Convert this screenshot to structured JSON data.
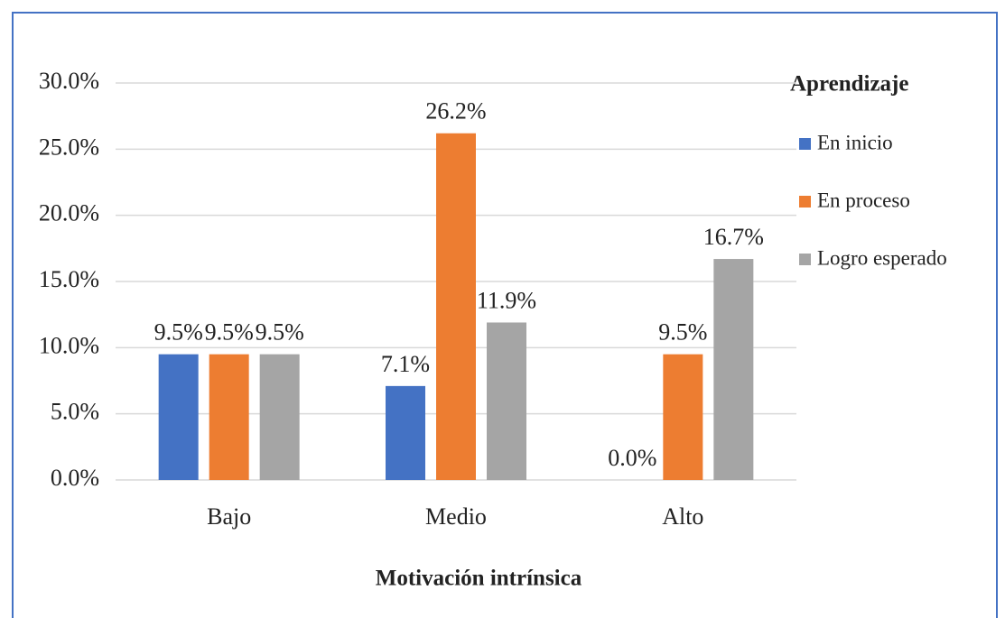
{
  "chart_data": {
    "type": "bar",
    "categories": [
      "Bajo",
      "Medio",
      "Alto"
    ],
    "series": [
      {
        "name": "En inicio",
        "color": "#4472c4",
        "values": [
          9.5,
          7.1,
          0.0
        ],
        "value_labels": [
          "9.5%",
          "7.1%",
          "0.0%"
        ]
      },
      {
        "name": "En proceso",
        "color": "#ed7d31",
        "values": [
          9.5,
          26.2,
          9.5
        ],
        "value_labels": [
          "9.5%",
          "26.2%",
          "9.5%"
        ]
      },
      {
        "name": "Logro esperado",
        "color": "#a5a5a5",
        "values": [
          9.5,
          11.9,
          16.7
        ],
        "value_labels": [
          "9.5%",
          "11.9%",
          "16.7%"
        ]
      }
    ],
    "x_label": "Motivación intrínsica",
    "legend_title": "Aprendizaje",
    "legend": "right",
    "ylim": [
      0,
      30
    ],
    "yticks": [
      {
        "value": 0,
        "label": "0.0%"
      },
      {
        "value": 5,
        "label": "5.0%"
      },
      {
        "value": 10,
        "label": "10.0%"
      },
      {
        "value": 15,
        "label": "15.0%"
      },
      {
        "value": 20,
        "label": "20.0%"
      },
      {
        "value": 25,
        "label": "25.0%"
      },
      {
        "value": 30,
        "label": "30.0%"
      }
    ],
    "grid": true
  }
}
